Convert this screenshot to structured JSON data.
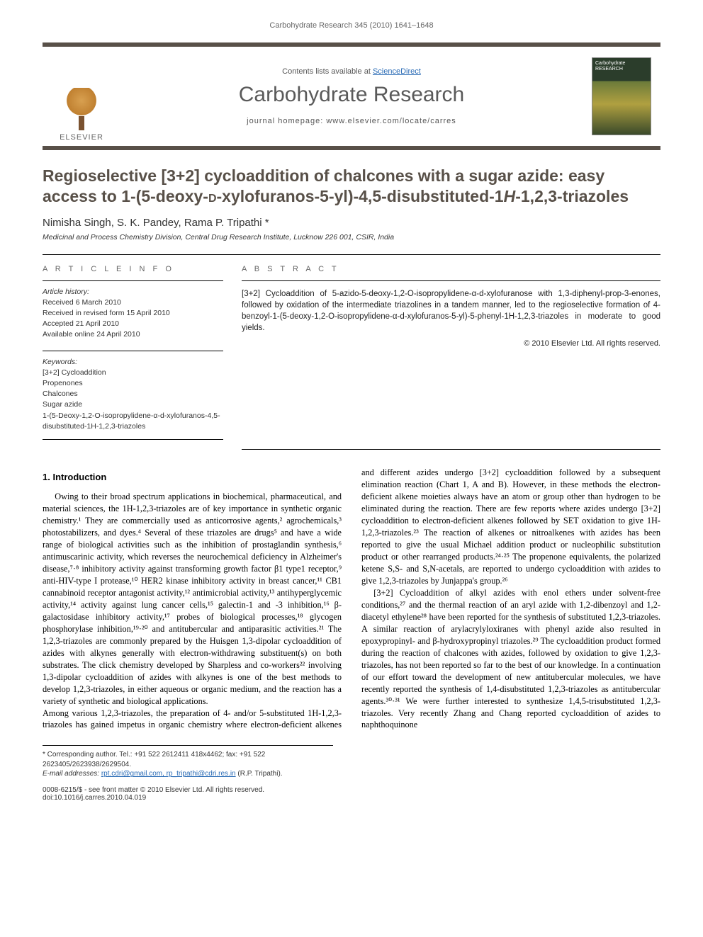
{
  "running_head": "Carbohydrate Research 345 (2010) 1641–1648",
  "masthead": {
    "publisher_label": "ELSEVIER",
    "contents_prefix": "Contents lists available at ",
    "contents_link": "ScienceDirect",
    "journal_name": "Carbohydrate Research",
    "homepage_prefix": "journal homepage: ",
    "homepage_url": "www.elsevier.com/locate/carres"
  },
  "title_html": "Regioselective [3+2] cycloaddition of chalcones with a sugar azide: easy access to 1-(5-deoxy-<span class='smallcaps'>d</span>-xylofuranos-5-yl)-4,5-disubstituted-1<span class='italic'>H</span>-1,2,3-triazoles",
  "authors": "Nimisha Singh, S. K. Pandey, Rama P. Tripathi *",
  "affiliation": "Medicinal and Process Chemistry Division, Central Drug Research Institute, Lucknow 226 001, CSIR, India",
  "info": {
    "heading": "A R T I C L E   I N F O",
    "history_label": "Article history:",
    "history": [
      "Received 6 March 2010",
      "Received in revised form 15 April 2010",
      "Accepted 21 April 2010",
      "Available online 24 April 2010"
    ],
    "keywords_label": "Keywords:",
    "keywords": [
      "[3+2] Cycloaddition",
      "Propenones",
      "Chalcones",
      "Sugar azide",
      "1-(5-Deoxy-1,2-O-isopropylidene-α-d-xylofuranos-4,5-disubstituted-1H-1,2,3-triazoles"
    ]
  },
  "abstract": {
    "heading": "A B S T R A C T",
    "text": "[3+2] Cycloaddition of 5-azido-5-deoxy-1,2-O-isopropylidene-α-d-xylofuranose with 1,3-diphenyl-prop-3-enones, followed by oxidation of the intermediate triazolines in a tandem manner, led to the regioselective formation of 4-benzoyl-1-(5-deoxy-1,2-O-isopropylidene-α-d-xylofuranos-5-yl)-5-phenyl-1H-1,2,3-triazoles in moderate to good yields.",
    "copyright": "© 2010 Elsevier Ltd. All rights reserved."
  },
  "section_head": "1. Introduction",
  "body": {
    "p1": "Owing to their broad spectrum applications in biochemical, pharmaceutical, and material sciences, the 1H-1,2,3-triazoles are of key importance in synthetic organic chemistry.¹ They are commercially used as anticorrosive agents,² agrochemicals,³ photostabilizers, and dyes.⁴ Several of these triazoles are drugs⁵ and have a wide range of biological activities such as the inhibition of prostaglandin synthesis,⁶ antimuscarinic activity, which reverses the neurochemical deficiency in Alzheimer's disease,⁷·⁸ inhibitory activity against transforming growth factor β1 type1 receptor,⁹ anti-HIV-type I protease,¹⁰ HER2 kinase inhibitory activity in breast cancer,¹¹ CB1 cannabinoid receptor antagonist activity,¹² antimicrobial activity,¹³ antihyperglycemic activity,¹⁴ activity against lung cancer cells,¹⁵ galectin-1 and -3 inhibition,¹⁶ β-galactosidase inhibitory activity,¹⁷ probes of biological processes,¹⁸ glycogen phosphorylase inhibition,¹⁹·²⁰ and antitubercular and antiparasitic activities.²¹ The 1,2,3-triazoles are commonly prepared by the Huisgen 1,3-dipolar cycloaddition of azides with alkynes generally with electron-withdrawing substituent(s) on both substrates. The click chemistry developed by Sharpless and co-workers²² involving 1,3-dipolar cycloaddition of azides with alkynes is one of the best methods to develop 1,2,3-triazoles, in either aqueous or organic medium, and the reaction has a variety of synthetic and biological applications.",
    "p2": "Among various 1,2,3-triazoles, the preparation of 4- and/or 5-substituted 1H-1,2,3-triazoles has gained impetus in organic chemistry where electron-deficient alkenes and different azides undergo [3+2] cycloaddition followed by a subsequent elimination reaction (Chart 1, A and B). However, in these methods the electron-deficient alkene moieties always have an atom or group other than hydrogen to be eliminated during the reaction. There are few reports where azides undergo [3+2] cycloaddition to electron-deficient alkenes followed by SET oxidation to give 1H-1,2,3-triazoles.²³ The reaction of alkenes or nitroalkenes with azides has been reported to give the usual Michael addition product or nucleophilic substitution product or other rearranged products.²⁴·²⁵ The propenone equivalents, the polarized ketene S,S- and S,N-acetals, are reported to undergo cycloaddition with azides to give 1,2,3-triazoles by Junjappa's group.²⁶",
    "p3": "[3+2] Cycloaddition of alkyl azides with enol ethers under solvent-free conditions,²⁷ and the thermal reaction of an aryl azide with 1,2-dibenzoyl and 1,2-diacetyl ethylene²⁸ have been reported for the synthesis of substituted 1,2,3-triazoles. A similar reaction of arylacrylyloxiranes with phenyl azide also resulted in epoxypropinyl- and β-hydroxypropinyl triazoles.²⁹ The cycloaddition product formed during the reaction of chalcones with azides, followed by oxidation to give 1,2,3-triazoles, has not been reported so far to the best of our knowledge. In a continuation of our effort toward the development of new antitubercular molecules, we have recently reported the synthesis of 1,4-disubstituted 1,2,3-triazoles as antitubercular agents.³⁰·³¹ We were further interested to synthesize 1,4,5-trisubstituted 1,2,3-triazoles. Very recently Zhang and Chang reported cycloaddition of azides to naphthoquinone"
  },
  "footnotes": {
    "corr": "* Corresponding author. Tel.: +91 522 2612411 418x4462; fax: +91 522 2623405/2623938/2629504.",
    "email_label": "E-mail addresses:",
    "emails": "rpt.cdri@gmail.com, rp_tripathi@cdri.res.in",
    "email_person": "(R.P. Tripathi)."
  },
  "bottom": {
    "left1": "0008-6215/$ - see front matter © 2010 Elsevier Ltd. All rights reserved.",
    "left2": "doi:10.1016/j.carres.2010.04.019"
  },
  "colors": {
    "rule": "#585048",
    "link": "#2a6bb5",
    "text": "#000000",
    "muted": "#666666"
  }
}
